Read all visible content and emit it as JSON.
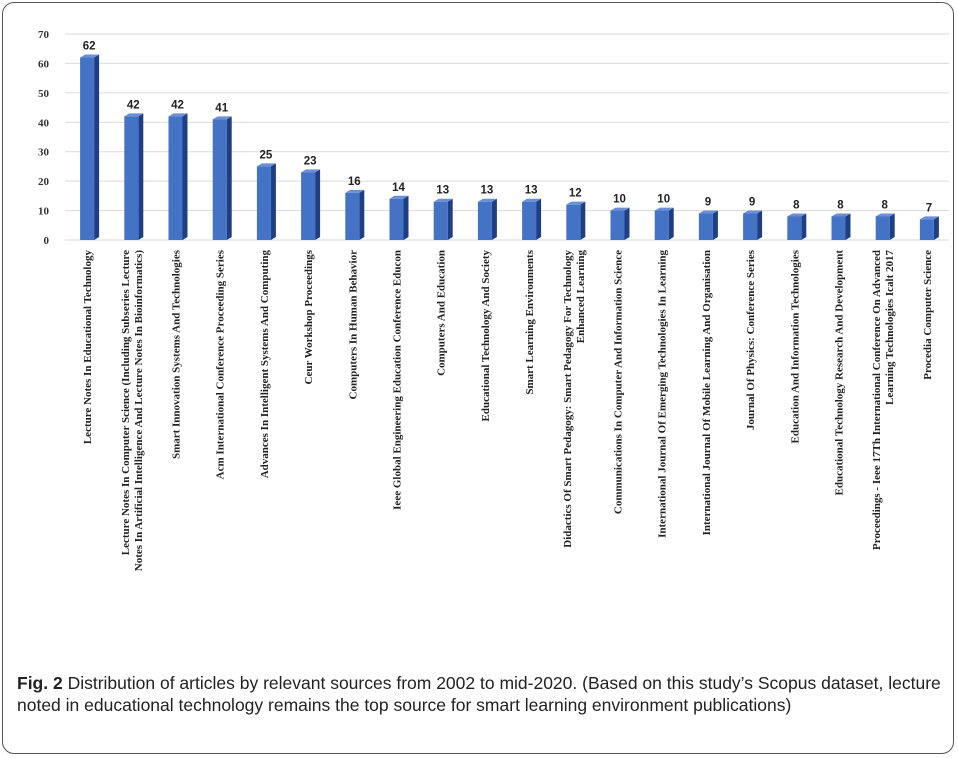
{
  "caption": {
    "label": "Fig. 2",
    "text": "Distribution of articles by relevant sources from 2002 to mid-2020. (Based on this study’s Scopus dataset, lecture noted in educational technology remains the top source for smart learning environment publications)"
  },
  "chart_data": {
    "type": "bar",
    "title": "",
    "xlabel": "",
    "ylabel": "",
    "ylim": [
      0,
      70
    ],
    "yticks": [
      0,
      10,
      20,
      30,
      40,
      50,
      60,
      70
    ],
    "grid": true,
    "legend": "none",
    "bar_color": "#4472C4",
    "categories": [
      "Lecture Notes In Educational Technology",
      "Lecture Notes In Computer Science (Including Subseries Lecture Notes In Artificial Intelligence And Lecture Notes In Bioinformatics)",
      "Smart Innovation Systems And Technologies",
      "Acm International Conference Proceeding Series",
      "Advances In Intelligent Systems And Computing",
      "Ceur Workshop Proceedings",
      "Computers In Human Behavior",
      "Ieee Global Engineering Education Conference Educon",
      "Computers And Education",
      "Educational Technology And Society",
      "Smart Learning Environments",
      "Didactics Of Smart Pedagogy: Smart Pedagogy For Technology Enhanced Learning",
      "Communications In Computer And Information Science",
      "International Journal Of Emerging Technologies In Learning",
      "International Journal Of Mobile Learning And Organisation",
      "Journal Of Physics: Conference Series",
      "Education And Information Technologies",
      "Educational Technology Research And Development",
      "Proceedings - Ieee 17Th International Conference On Advanced Learning Technologies Icalt 2017",
      "Procedia Computer Science"
    ],
    "label_lines": [
      [
        "Lecture Notes In Educational Technology"
      ],
      [
        "Lecture Notes In Computer Science (Including Subseries Lecture",
        "Notes In Artificial Intelligence And Lecture Notes In Bioinformatics)"
      ],
      [
        "Smart Innovation Systems And Technologies"
      ],
      [
        "Acm International Conference Proceeding Series"
      ],
      [
        "Advances In Intelligent Systems And Computing"
      ],
      [
        "Ceur Workshop Proceedings"
      ],
      [
        "Computers In Human Behavior"
      ],
      [
        "Ieee Global Engineering Education Conference Educon"
      ],
      [
        "Computers And Education"
      ],
      [
        "Educational Technology And Society"
      ],
      [
        "Smart Learning Environments"
      ],
      [
        "Didactics Of Smart Pedagogy: Smart Pedagogy For Technology",
        "Enhanced Learning"
      ],
      [
        "Communications In Computer And Information Science"
      ],
      [
        "International Journal Of Emerging Technologies In Learning"
      ],
      [
        "International Journal Of Mobile Learning And Organisation"
      ],
      [
        "Journal Of Physics: Conference Series"
      ],
      [
        "Education And Information Technologies"
      ],
      [
        "Educational Technology Research And Development"
      ],
      [
        "Proceedings - Ieee 17Th International Conference On Advanced",
        "Learning Technologies Icalt 2017"
      ],
      [
        "Procedia Computer Science"
      ]
    ],
    "values": [
      62,
      42,
      42,
      41,
      25,
      23,
      16,
      14,
      13,
      13,
      13,
      12,
      10,
      10,
      9,
      9,
      8,
      8,
      8,
      7
    ]
  }
}
